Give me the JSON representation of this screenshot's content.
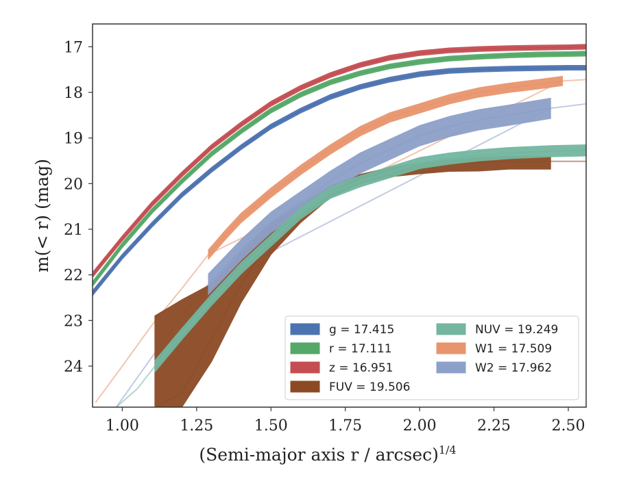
{
  "chart_data": {
    "type": "area",
    "xlabel": "(Semi-major axis r / arcsec)",
    "xlabel_sup": "1/4",
    "ylabel": "m(< r) (mag)",
    "xlim": [
      0.9,
      2.56
    ],
    "ylim": [
      24.9,
      16.5
    ],
    "y_inverted": true,
    "grid": false,
    "legend_position": "lower-right",
    "xticks": [
      "1.00",
      "1.25",
      "1.50",
      "1.75",
      "2.00",
      "2.25",
      "2.50"
    ],
    "yticks": [
      "17",
      "18",
      "19",
      "20",
      "21",
      "22",
      "23",
      "24"
    ],
    "series": [
      {
        "name": "g = 17.415",
        "color": "#4c72b0",
        "band": 0.05,
        "x": [
          0.9,
          1.0,
          1.1,
          1.2,
          1.3,
          1.4,
          1.5,
          1.6,
          1.7,
          1.8,
          1.9,
          2.0,
          2.1,
          2.2,
          2.3,
          2.4,
          2.5,
          2.56
        ],
        "y": [
          22.4,
          21.6,
          20.9,
          20.25,
          19.7,
          19.2,
          18.75,
          18.4,
          18.1,
          17.88,
          17.72,
          17.6,
          17.53,
          17.5,
          17.48,
          17.47,
          17.46,
          17.46
        ]
      },
      {
        "name": "r = 17.111",
        "color": "#55a868",
        "band": 0.05,
        "x": [
          0.9,
          1.0,
          1.1,
          1.2,
          1.3,
          1.4,
          1.5,
          1.6,
          1.7,
          1.8,
          1.9,
          2.0,
          2.1,
          2.2,
          2.3,
          2.4,
          2.5,
          2.56
        ],
        "y": [
          22.2,
          21.35,
          20.6,
          19.95,
          19.35,
          18.85,
          18.4,
          18.05,
          17.78,
          17.58,
          17.43,
          17.33,
          17.26,
          17.22,
          17.19,
          17.17,
          17.16,
          17.15
        ]
      },
      {
        "name": "z = 16.951",
        "color": "#c44e52",
        "band": 0.05,
        "x": [
          0.9,
          1.0,
          1.1,
          1.2,
          1.3,
          1.4,
          1.5,
          1.6,
          1.7,
          1.8,
          1.9,
          2.0,
          2.1,
          2.2,
          2.3,
          2.4,
          2.5,
          2.56
        ],
        "y": [
          22.0,
          21.2,
          20.45,
          19.8,
          19.2,
          18.7,
          18.25,
          17.9,
          17.62,
          17.4,
          17.24,
          17.14,
          17.08,
          17.05,
          17.03,
          17.02,
          17.01,
          17.0
        ]
      },
      {
        "name": "FUV = 19.506",
        "color": "#8c4a24",
        "x": [
          1.11,
          1.2,
          1.3,
          1.4,
          1.5,
          1.6,
          1.7,
          1.8,
          1.9,
          2.0,
          2.1,
          2.2,
          2.3,
          2.44
        ],
        "y_upper": [
          22.9,
          22.55,
          22.2,
          21.5,
          20.85,
          20.45,
          20.05,
          19.8,
          19.65,
          19.55,
          19.48,
          19.43,
          19.4,
          19.4
        ],
        "y_lower": [
          24.9,
          24.9,
          23.9,
          22.6,
          21.55,
          20.85,
          20.3,
          20.0,
          19.85,
          19.78,
          19.73,
          19.72,
          19.68,
          19.68
        ],
        "ext_x": [
          1.11,
          1.2,
          1.3,
          1.4,
          1.5,
          1.6,
          1.7,
          1.8,
          1.9,
          2.0,
          2.1,
          2.2,
          2.3,
          2.44,
          2.56
        ],
        "ext_y": [
          24.9,
          24.6,
          23.4,
          22.2,
          21.2,
          20.6,
          20.2,
          19.95,
          19.75,
          19.63,
          19.57,
          19.54,
          19.52,
          19.51,
          19.51
        ]
      },
      {
        "name": "NUV = 19.249",
        "color": "#73b7a0",
        "band": 0.12,
        "x": [
          1.11,
          1.2,
          1.3,
          1.4,
          1.5,
          1.6,
          1.7,
          1.8,
          1.9,
          2.0,
          2.1,
          2.2,
          2.3,
          2.44,
          2.56
        ],
        "y": [
          24.0,
          23.3,
          22.55,
          21.85,
          21.25,
          20.65,
          20.2,
          19.95,
          19.75,
          19.55,
          19.45,
          19.38,
          19.33,
          19.29,
          19.27
        ],
        "ext_x": [
          0.98,
          1.05,
          1.11
        ],
        "ext_y": [
          24.9,
          24.5,
          24.0
        ]
      },
      {
        "name": "W1 = 17.509",
        "color": "#e8956e",
        "band": 0.1,
        "x": [
          1.29,
          1.35,
          1.4,
          1.5,
          1.6,
          1.7,
          1.8,
          1.9,
          2.0,
          2.1,
          2.2,
          2.3,
          2.4,
          2.48
        ],
        "y": [
          21.55,
          21.1,
          20.75,
          20.2,
          19.7,
          19.25,
          18.85,
          18.55,
          18.35,
          18.15,
          18.0,
          17.9,
          17.82,
          17.75
        ],
        "ext_x": [
          0.91,
          1.0,
          1.1,
          1.2,
          1.29,
          2.48,
          2.56
        ],
        "ext_y": [
          24.8,
          24.0,
          23.1,
          22.3,
          21.55,
          17.75,
          17.72
        ]
      },
      {
        "name": "W2 = 17.962",
        "color": "#8da0c8",
        "band": 0.22,
        "x": [
          1.29,
          1.4,
          1.5,
          1.6,
          1.7,
          1.8,
          1.9,
          2.0,
          2.1,
          2.2,
          2.3,
          2.44
        ],
        "y": [
          22.2,
          21.45,
          20.85,
          20.4,
          19.95,
          19.55,
          19.25,
          18.95,
          18.75,
          18.6,
          18.5,
          18.35
        ],
        "ext_x": [
          0.98,
          1.1,
          1.2,
          1.29,
          2.44,
          2.56
        ],
        "ext_y": [
          24.9,
          23.8,
          22.9,
          22.2,
          18.35,
          18.25
        ]
      }
    ]
  }
}
